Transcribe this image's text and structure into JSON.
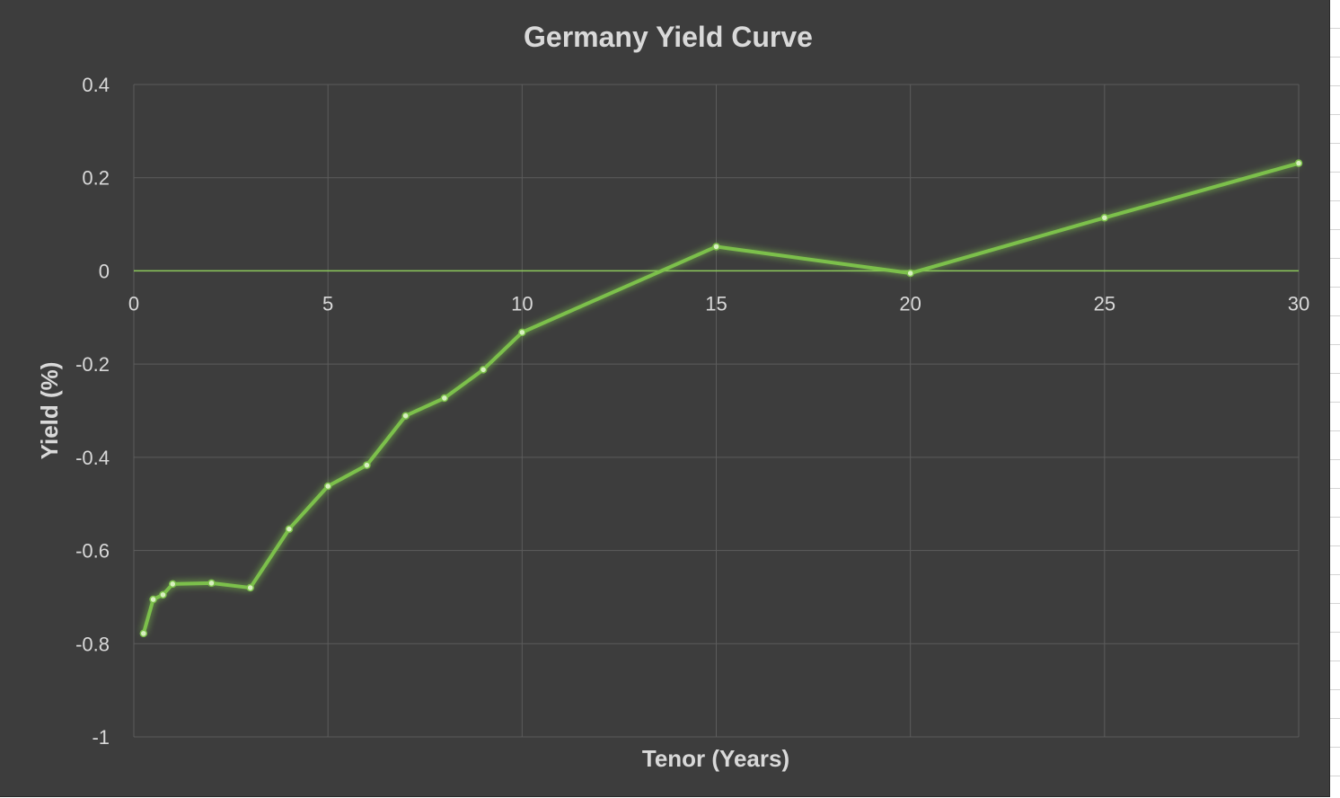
{
  "chart_data": {
    "type": "line",
    "title": "Germany Yield Curve",
    "xlabel": "Tenor (Years)",
    "ylabel": "Yield (%)",
    "xlim": [
      0,
      30
    ],
    "ylim": [
      -1,
      0.4
    ],
    "x_ticks": [
      0,
      5,
      10,
      15,
      20,
      25,
      30
    ],
    "y_ticks": [
      0.4,
      0.2,
      0,
      -0.2,
      -0.4,
      -0.6,
      -0.8,
      -1
    ],
    "x_tick_labels": [
      "0",
      "5",
      "10",
      "15",
      "20",
      "25",
      "30"
    ],
    "y_tick_labels": [
      "0.4",
      "0.2",
      "0",
      "-0.2",
      "-0.4",
      "-0.6",
      "-0.8",
      "-1"
    ],
    "grid": true,
    "legend": "none",
    "series": [
      {
        "color": "#7cc04b",
        "x": [
          0.25,
          0.5,
          0.75,
          1,
          2,
          3,
          4,
          5,
          6,
          7,
          8,
          9,
          10,
          15,
          20,
          25,
          30
        ],
        "y": [
          -0.778,
          -0.705,
          -0.695,
          -0.672,
          -0.67,
          -0.68,
          -0.554,
          -0.462,
          -0.417,
          -0.311,
          -0.273,
          -0.212,
          -0.132,
          0.052,
          -0.005,
          0.114,
          0.231
        ]
      }
    ],
    "colors": {
      "background": "#3d3d3d",
      "grid": "#5c5c5c",
      "zero_line": "#8dc95c",
      "text": "#d9d9d9"
    }
  }
}
